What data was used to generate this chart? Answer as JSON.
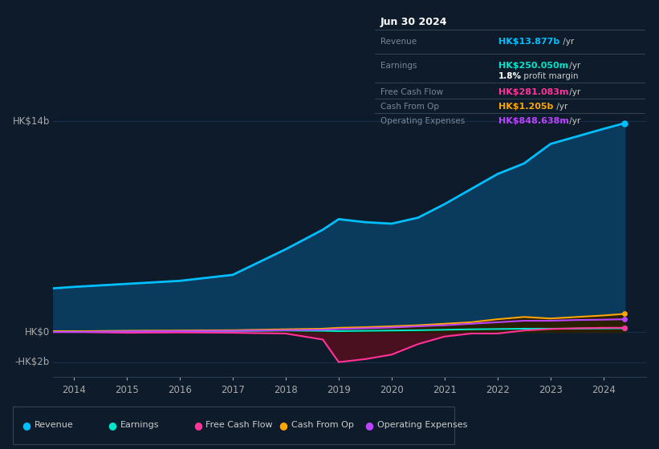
{
  "bg_color": "#0d1b2a",
  "plot_bg_color": "#0d1b2a",
  "x_years": [
    2013.6,
    2014,
    2015,
    2016,
    2017,
    2018,
    2018.7,
    2019,
    2019.5,
    2020,
    2020.5,
    2021,
    2021.5,
    2022,
    2022.5,
    2023,
    2023.5,
    2024,
    2024.4
  ],
  "revenue": [
    2.9,
    3.0,
    3.2,
    3.4,
    3.8,
    5.5,
    6.8,
    7.5,
    7.3,
    7.2,
    7.6,
    8.5,
    9.5,
    10.5,
    11.2,
    12.5,
    13.0,
    13.5,
    13.877
  ],
  "earnings": [
    0.05,
    0.05,
    0.07,
    0.06,
    0.07,
    0.1,
    0.08,
    0.06,
    0.08,
    0.1,
    0.12,
    0.15,
    0.18,
    0.2,
    0.22,
    0.22,
    0.23,
    0.24,
    0.25
  ],
  "free_cash_flow": [
    0.0,
    0.0,
    -0.05,
    -0.03,
    -0.05,
    -0.1,
    -0.5,
    -2.0,
    -1.8,
    -1.5,
    -0.8,
    -0.3,
    -0.1,
    -0.1,
    0.1,
    0.2,
    0.25,
    0.28,
    0.281
  ],
  "cash_from_op": [
    0.05,
    0.05,
    0.08,
    0.1,
    0.12,
    0.18,
    0.22,
    0.28,
    0.32,
    0.38,
    0.45,
    0.55,
    0.65,
    0.85,
    1.0,
    0.9,
    1.0,
    1.1,
    1.205
  ],
  "operating_expenses": [
    0.0,
    0.0,
    0.04,
    0.06,
    0.08,
    0.12,
    0.15,
    0.2,
    0.25,
    0.3,
    0.38,
    0.45,
    0.55,
    0.65,
    0.75,
    0.75,
    0.8,
    0.82,
    0.849
  ],
  "revenue_color": "#00bfff",
  "earnings_color": "#00e5cc",
  "free_cash_flow_color": "#ff3399",
  "cash_from_op_color": "#ffa500",
  "operating_expenses_color": "#bb44ff",
  "fill_revenue_color": "#0a3a5c",
  "fill_fcf_neg_color": "#4a1020",
  "fill_cashop_color": "#2a2000",
  "ylim_min": -3.0,
  "ylim_max": 15.5,
  "xticks": [
    2014,
    2015,
    2016,
    2017,
    2018,
    2019,
    2020,
    2021,
    2022,
    2023,
    2024
  ],
  "grid_color": "#1e3050",
  "legend_bg": "#0d1b2a",
  "legend_border": "#2a3f55",
  "info_box_bg": "#080c10",
  "info_box_border": "#334455",
  "info_revenue_color": "#00bfff",
  "info_earnings_color": "#00e5cc",
  "info_fcf_color": "#ff3399",
  "info_cashop_color": "#ffa500",
  "info_opex_color": "#bb44ff"
}
